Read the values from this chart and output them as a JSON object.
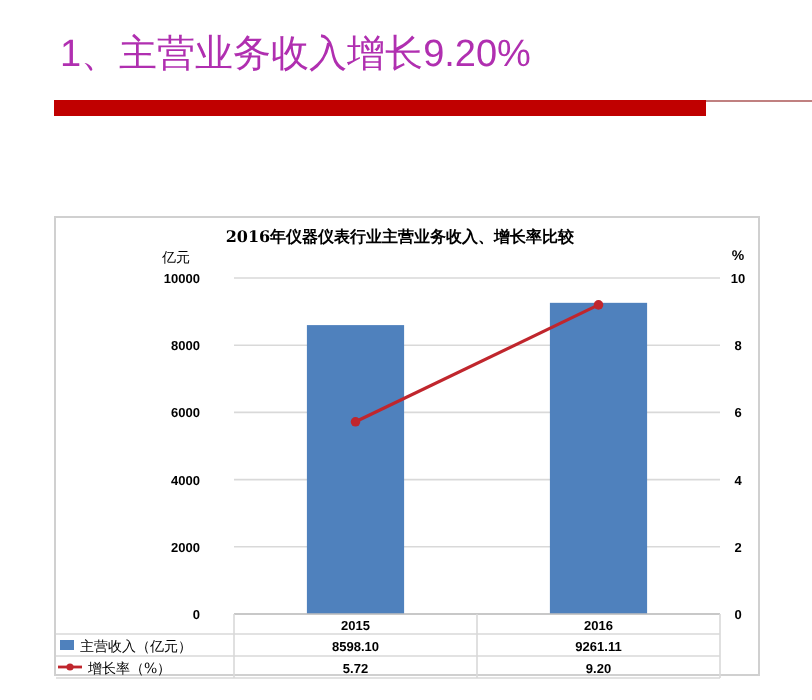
{
  "chart_data": {
    "type": "bar",
    "title": "1、主营业务收入增长9.20%",
    "subtitle": "2016年仪器仪表行业主营业务收入、增长率比较",
    "ylabel": "亿元",
    "y2label": "%",
    "categories": [
      "2015",
      "2016"
    ],
    "series": [
      {
        "name": "主营收入（亿元）",
        "color": "#4f81bd",
        "values": [
          8598.1,
          9261.11
        ],
        "value_labels": [
          "8598.10",
          "9261.11"
        ]
      },
      {
        "name": "增长率（%）",
        "type": "line",
        "axis": "y2",
        "color": "#c0262d",
        "values": [
          5.72,
          9.2
        ],
        "value_labels": [
          "5.72",
          "9.20"
        ]
      }
    ],
    "ylim": [
      0,
      10000
    ],
    "yticks": [
      0,
      2000,
      4000,
      6000,
      8000,
      10000
    ],
    "y2lim": [
      0,
      10
    ],
    "y2ticks": [
      0,
      2,
      4,
      6,
      8,
      10
    ],
    "grid": "y",
    "legend": "bottom",
    "marker": "circle"
  }
}
